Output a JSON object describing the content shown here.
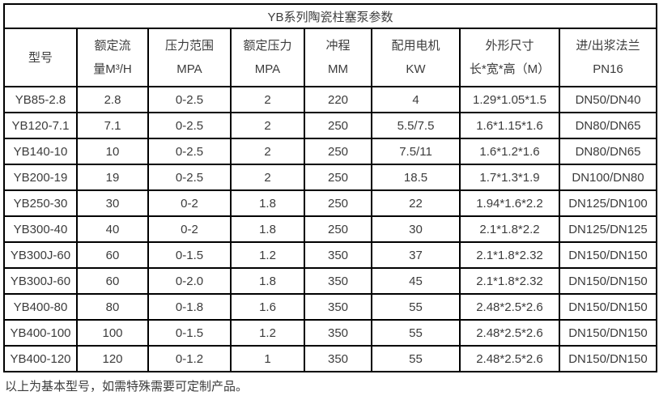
{
  "page": {
    "background_color": "#ffffff",
    "border_color": "#000000",
    "text_color": "#3c3c3c"
  },
  "table": {
    "title": "YB系列陶瓷柱塞泵参数",
    "columns": [
      {
        "id": "model",
        "lines": [
          "型号"
        ]
      },
      {
        "id": "rated-flow",
        "lines": [
          "额定流",
          "量M³/H"
        ]
      },
      {
        "id": "pressure-range",
        "lines": [
          "压力范围",
          "MPA"
        ]
      },
      {
        "id": "rated-pressure",
        "lines": [
          "额定压力",
          "MPA"
        ]
      },
      {
        "id": "stroke",
        "lines": [
          "冲程",
          "MM"
        ]
      },
      {
        "id": "motor",
        "lines": [
          "配用电机",
          "KW"
        ]
      },
      {
        "id": "dimensions",
        "lines": [
          "外形尺寸",
          "长*宽*高（M）"
        ]
      },
      {
        "id": "flange",
        "lines": [
          "进/出浆法兰",
          "PN16"
        ]
      }
    ],
    "rows": [
      [
        "YB85-2.8",
        "2.8",
        "0-2.5",
        "2",
        "220",
        "4",
        "1.29*1.05*1.5",
        "DN50/DN40"
      ],
      [
        "YB120-7.1",
        "7.1",
        "0-2.5",
        "2",
        "250",
        "5.5/7.5",
        "1.6*1.15*1.6",
        "DN80/DN65"
      ],
      [
        "YB140-10",
        "10",
        "0-2.5",
        "2",
        "250",
        "7.5/11",
        "1.6*1.2*1.6",
        "DN80/DN65"
      ],
      [
        "YB200-19",
        "19",
        "0-2.5",
        "2",
        "250",
        "18.5",
        "1.7*1.3*1.9",
        "DN100/DN80"
      ],
      [
        "YB250-30",
        "30",
        "0-2",
        "1.8",
        "250",
        "22",
        "1.94*1.6*2.2",
        "DN125/DN100"
      ],
      [
        "YB300-40",
        "40",
        "0-2",
        "1.8",
        "250",
        "30",
        "2.1*1.8*2.2",
        "DN125/DN125"
      ],
      [
        "YB300J-60",
        "60",
        "0-1.5",
        "1.2",
        "350",
        "37",
        "2.1*1.8*2.32",
        "DN150/DN150"
      ],
      [
        "YB300J-60",
        "60",
        "0-2.0",
        "1.8",
        "350",
        "45",
        "2.1*1.8*2.32",
        "DN150/DN150"
      ],
      [
        "YB400-80",
        "80",
        "0-1.8",
        "1.6",
        "350",
        "55",
        "2.48*2.5*2.6",
        "DN150/DN150"
      ],
      [
        "YB400-100",
        "100",
        "0-1.5",
        "1.2",
        "350",
        "55",
        "2.48*2.5*2.6",
        "DN150/DN150"
      ],
      [
        "YB400-120",
        "120",
        "0-1.2",
        "1",
        "350",
        "55",
        "2.48*2.5*2.6",
        "DN150/DN150"
      ]
    ]
  },
  "footer": {
    "note": "以上为基本型号，如需特殊需要可定制产品。"
  }
}
